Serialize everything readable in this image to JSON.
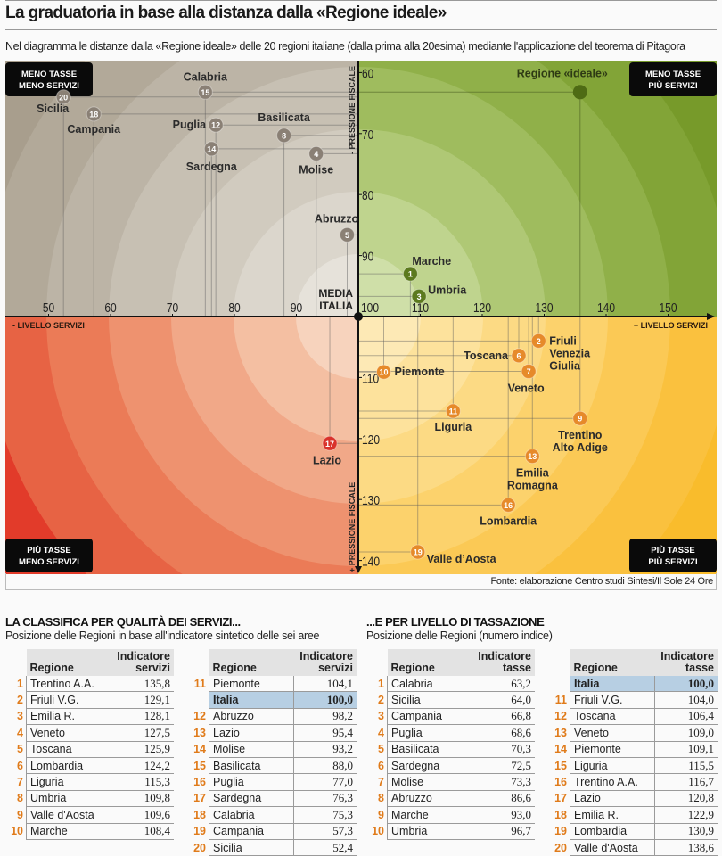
{
  "header": {
    "title": "La graduatoria in base alla distanza dalla «Regione ideale»",
    "subtitle": "Nel diagramma le distanze dalla «Regione ideale» delle 20 regioni italiane (dalla prima alla 20esima) mediante l'applicazione del teorema di Pitagora",
    "source": "Fonte: elaborazione Centro studi Sintesi/Il Sole 24 Ore"
  },
  "chart_data": {
    "type": "scatter",
    "title": "La graduatoria in base alla distanza dalla «Regione ideale»",
    "xlabel_negative": "- LIVELLO SERVIZI",
    "xlabel_positive": "+ LIVELLO SERVIZI",
    "ylabel_top": "- PRESSIONE FISCALE",
    "ylabel_bottom": "+ PRESSIONE FISCALE",
    "xlim": [
      43,
      157
    ],
    "ylim_top_to_bottom": [
      58,
      142
    ],
    "y_inverted": true,
    "x_ticks": [
      50,
      60,
      70,
      80,
      90,
      100,
      110,
      120,
      130,
      140,
      150
    ],
    "y_ticks": [
      60,
      70,
      80,
      90,
      110,
      120,
      130,
      140
    ],
    "center_label": [
      "MEDIA",
      "ITALIA"
    ],
    "center": [
      100,
      100
    ],
    "quadrant_labels": {
      "top_left": [
        "MENO TASSE",
        "MENO SERVIZI"
      ],
      "top_right": [
        "MENO TASSE",
        "PIÙ SERVIZI"
      ],
      "bottom_left": [
        "PIÙ TASSE",
        "MENO SERVIZI"
      ],
      "bottom_right": [
        "PIÙ TASSE",
        "PIÙ SERVIZI"
      ]
    },
    "ideal": {
      "label": "Regione «ideale»",
      "x": 135.8,
      "y": 63.2
    },
    "colors": {
      "top_left": "#8a8075",
      "top_right": "#5c7a1e",
      "bottom_left": "#d9332b",
      "bottom_right": "#e68a2a"
    },
    "points": [
      {
        "rank": 1,
        "name": "Marche",
        "x": 108.4,
        "y": 93.0,
        "quad": "top_right"
      },
      {
        "rank": 2,
        "name": "Friuli Venezia Giulia",
        "x": 129.1,
        "y": 104.0,
        "quad": "bottom_right"
      },
      {
        "rank": 3,
        "name": "Umbria",
        "x": 109.8,
        "y": 96.7,
        "quad": "top_right"
      },
      {
        "rank": 4,
        "name": "Molise",
        "x": 93.2,
        "y": 73.3,
        "quad": "top_left"
      },
      {
        "rank": 5,
        "name": "Abruzzo",
        "x": 98.2,
        "y": 86.6,
        "quad": "top_left"
      },
      {
        "rank": 6,
        "name": "Toscana",
        "x": 125.9,
        "y": 106.4,
        "quad": "bottom_right"
      },
      {
        "rank": 7,
        "name": "Veneto",
        "x": 127.5,
        "y": 109.0,
        "quad": "bottom_right"
      },
      {
        "rank": 8,
        "name": "Basilicata",
        "x": 88.0,
        "y": 70.3,
        "quad": "top_left"
      },
      {
        "rank": 9,
        "name": "Trentino Alto Adige",
        "x": 135.8,
        "y": 116.7,
        "quad": "bottom_right"
      },
      {
        "rank": 10,
        "name": "Piemonte",
        "x": 104.1,
        "y": 109.1,
        "quad": "bottom_right"
      },
      {
        "rank": 11,
        "name": "Liguria",
        "x": 115.3,
        "y": 115.5,
        "quad": "bottom_right"
      },
      {
        "rank": 12,
        "name": "Puglia",
        "x": 77.0,
        "y": 68.6,
        "quad": "top_left"
      },
      {
        "rank": 13,
        "name": "Emilia Romagna",
        "x": 128.1,
        "y": 122.9,
        "quad": "bottom_right"
      },
      {
        "rank": 14,
        "name": "Sardegna",
        "x": 76.3,
        "y": 72.5,
        "quad": "top_left"
      },
      {
        "rank": 15,
        "name": "Calabria",
        "x": 75.3,
        "y": 63.2,
        "quad": "top_left"
      },
      {
        "rank": 16,
        "name": "Lombardia",
        "x": 124.2,
        "y": 130.9,
        "quad": "bottom_right"
      },
      {
        "rank": 17,
        "name": "Lazio",
        "x": 95.4,
        "y": 120.8,
        "quad": "bottom_left"
      },
      {
        "rank": 18,
        "name": "Campania",
        "x": 57.3,
        "y": 66.8,
        "quad": "top_left"
      },
      {
        "rank": 19,
        "name": "Valle d'Aosta",
        "x": 109.6,
        "y": 138.6,
        "quad": "bottom_right"
      },
      {
        "rank": 20,
        "name": "Sicilia",
        "x": 52.4,
        "y": 64.0,
        "quad": "top_left"
      }
    ],
    "tables": {
      "servizi": {
        "title": "LA CLASSIFICA PER QUALITÀ DEI SERVIZI...",
        "subtitle": "Posizione delle Regioni in base all'indicatore sintetico delle sei aree",
        "col_regione": "Regione",
        "col_value": [
          "Indicatore",
          "servizi"
        ],
        "left": [
          {
            "rank": "1",
            "region": "Trentino A.A.",
            "value": "135,8"
          },
          {
            "rank": "2",
            "region": "Friuli V.G.",
            "value": "129,1"
          },
          {
            "rank": "3",
            "region": "Emilia R.",
            "value": "128,1"
          },
          {
            "rank": "4",
            "region": "Veneto",
            "value": "127,5"
          },
          {
            "rank": "5",
            "region": "Toscana",
            "value": "125,9"
          },
          {
            "rank": "6",
            "region": "Lombardia",
            "value": "124,2"
          },
          {
            "rank": "7",
            "region": "Liguria",
            "value": "115,3"
          },
          {
            "rank": "8",
            "region": "Umbria",
            "value": "109,8"
          },
          {
            "rank": "9",
            "region": "Valle d'Aosta",
            "value": "109,6"
          },
          {
            "rank": "10",
            "region": "Marche",
            "value": "108,4"
          }
        ],
        "right": [
          {
            "rank": "11",
            "region": "Piemonte",
            "value": "104,1"
          },
          {
            "rank": "",
            "region": "Italia",
            "value": "100,0",
            "highlight": true
          },
          {
            "rank": "12",
            "region": "Abruzzo",
            "value": "98,2"
          },
          {
            "rank": "13",
            "region": "Lazio",
            "value": "95,4"
          },
          {
            "rank": "14",
            "region": "Molise",
            "value": "93,2"
          },
          {
            "rank": "15",
            "region": "Basilicata",
            "value": "88,0"
          },
          {
            "rank": "16",
            "region": "Puglia",
            "value": "77,0"
          },
          {
            "rank": "17",
            "region": "Sardegna",
            "value": "76,3"
          },
          {
            "rank": "18",
            "region": "Calabria",
            "value": "75,3"
          },
          {
            "rank": "19",
            "region": "Campania",
            "value": "57,3"
          },
          {
            "rank": "20",
            "region": "Sicilia",
            "value": "52,4"
          }
        ]
      },
      "tasse": {
        "title": "...E PER LIVELLO DI TASSAZIONE",
        "subtitle": "Posizione delle Regioni (numero indice)",
        "col_regione": "Regione",
        "col_value": [
          "Indicatore",
          "tasse"
        ],
        "left": [
          {
            "rank": "1",
            "region": "Calabria",
            "value": "63,2"
          },
          {
            "rank": "2",
            "region": "Sicilia",
            "value": "64,0"
          },
          {
            "rank": "3",
            "region": "Campania",
            "value": "66,8"
          },
          {
            "rank": "4",
            "region": "Puglia",
            "value": "68,6"
          },
          {
            "rank": "5",
            "region": "Basilicata",
            "value": "70,3"
          },
          {
            "rank": "6",
            "region": "Sardegna",
            "value": "72,5"
          },
          {
            "rank": "7",
            "region": "Molise",
            "value": "73,3"
          },
          {
            "rank": "8",
            "region": "Abruzzo",
            "value": "86,6"
          },
          {
            "rank": "9",
            "region": "Marche",
            "value": "93,0"
          },
          {
            "rank": "10",
            "region": "Umbria",
            "value": "96,7"
          }
        ],
        "right": [
          {
            "rank": "",
            "region": "Italia",
            "value": "100,0",
            "highlight": true
          },
          {
            "rank": "11",
            "region": "Friuli V.G.",
            "value": "104,0"
          },
          {
            "rank": "12",
            "region": "Toscana",
            "value": "106,4"
          },
          {
            "rank": "13",
            "region": "Veneto",
            "value": "109,0"
          },
          {
            "rank": "14",
            "region": "Piemonte",
            "value": "109,1"
          },
          {
            "rank": "15",
            "region": "Liguria",
            "value": "115,5"
          },
          {
            "rank": "16",
            "region": "Trentino A.A.",
            "value": "116,7"
          },
          {
            "rank": "17",
            "region": "Lazio",
            "value": "120,8"
          },
          {
            "rank": "18",
            "region": "Emilia R.",
            "value": "122,9"
          },
          {
            "rank": "19",
            "region": "Lombardia",
            "value": "130,9"
          },
          {
            "rank": "20",
            "region": "Valle d'Aosta",
            "value": "138,6"
          }
        ]
      }
    }
  }
}
